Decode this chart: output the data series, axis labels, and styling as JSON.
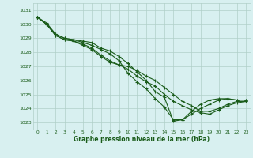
{
  "x": [
    0,
    1,
    2,
    3,
    4,
    5,
    6,
    7,
    8,
    9,
    10,
    11,
    12,
    13,
    14,
    15,
    16,
    17,
    18,
    19,
    20,
    21,
    22,
    23
  ],
  "line1": [
    1030.5,
    1030.1,
    1029.3,
    1029.0,
    1028.9,
    1028.8,
    1028.7,
    1028.3,
    1028.1,
    1027.7,
    1027.2,
    1026.6,
    1026.0,
    1025.2,
    1024.8,
    1023.1,
    1023.2,
    1023.8,
    1024.3,
    1024.6,
    1024.7,
    1024.7,
    1024.6,
    1024.6
  ],
  "line2": [
    1030.5,
    1030.0,
    1029.3,
    1029.0,
    1028.9,
    1028.7,
    1028.5,
    1028.2,
    1027.9,
    1027.4,
    1026.5,
    1025.9,
    1025.4,
    1024.7,
    1024.1,
    1023.2,
    1023.2,
    1023.6,
    1024.0,
    1024.3,
    1024.6,
    1024.7,
    1024.6,
    1024.6
  ],
  "line3": [
    1030.5,
    1030.0,
    1029.2,
    1028.9,
    1028.8,
    1028.5,
    1028.2,
    1027.7,
    1027.3,
    1027.1,
    1027.0,
    1026.7,
    1026.3,
    1026.0,
    1025.5,
    1025.0,
    1024.5,
    1024.2,
    1023.8,
    1023.8,
    1024.0,
    1024.3,
    1024.5,
    1024.5
  ],
  "line4": [
    1030.5,
    1030.0,
    1029.2,
    1028.9,
    1028.8,
    1028.6,
    1028.3,
    1027.8,
    1027.4,
    1027.1,
    1026.8,
    1026.3,
    1025.9,
    1025.6,
    1025.0,
    1024.5,
    1024.2,
    1023.9,
    1023.7,
    1023.6,
    1023.9,
    1024.2,
    1024.4,
    1024.5
  ],
  "line_color": "#1a5c1a",
  "background_color": "#d8f0f0",
  "grid_color": "#b0cfc8",
  "ylim_min": 1022.5,
  "ylim_max": 1031.5,
  "yticks": [
    1023,
    1024,
    1025,
    1026,
    1027,
    1028,
    1029,
    1030,
    1031
  ],
  "xticks": [
    0,
    1,
    2,
    3,
    4,
    5,
    6,
    7,
    8,
    9,
    10,
    11,
    12,
    13,
    14,
    15,
    16,
    17,
    18,
    19,
    20,
    21,
    22,
    23
  ],
  "xlabel": "Graphe pression niveau de la mer (hPa)",
  "marker": "+",
  "marker_size": 3,
  "line_width": 0.8
}
